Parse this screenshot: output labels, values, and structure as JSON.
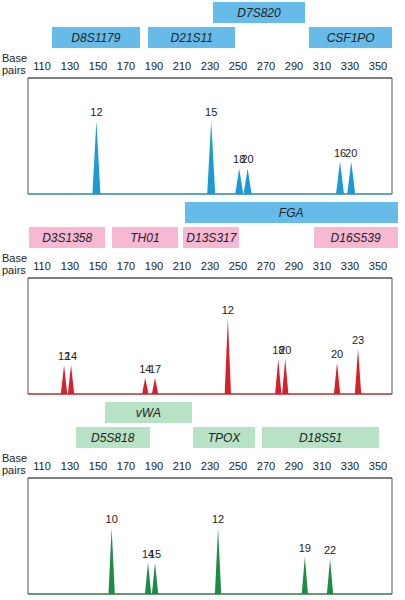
{
  "chart_data": [
    {
      "type": "bar",
      "x_label": "Base pairs",
      "xlim": [
        100,
        360
      ],
      "xticks": [
        110,
        130,
        150,
        170,
        190,
        210,
        230,
        250,
        270,
        290,
        310,
        330,
        350
      ],
      "ylim": [
        0,
        100
      ],
      "tick_labels": "x",
      "color": "#1c9ad6",
      "x": [
        149,
        231,
        251,
        257,
        323,
        331
      ],
      "values": [
        63,
        63,
        22,
        22,
        28,
        28
      ],
      "allele_labels": [
        12,
        15,
        18,
        20,
        16,
        20
      ],
      "loci": [
        {
          "name": "D8S1179",
          "range": [
            117,
            180
          ],
          "color": "#66bbe8"
        },
        {
          "name": "D21S11",
          "range": [
            186,
            248
          ],
          "color": "#66bbe8"
        },
        {
          "name": "D7S820",
          "range": [
            232,
            298
          ],
          "color": "#66bbe8"
        },
        {
          "name": "CSF1PO",
          "range": [
            301,
            360
          ],
          "color": "#66bbe8"
        }
      ]
    },
    {
      "type": "bar",
      "x_label": "Base pairs",
      "xlim": [
        100,
        360
      ],
      "xticks": [
        110,
        130,
        150,
        170,
        190,
        210,
        230,
        250,
        270,
        290,
        310,
        330,
        350
      ],
      "ylim": [
        0,
        100
      ],
      "tick_labels": "x",
      "color": "#d6202c",
      "x": [
        126,
        131,
        184,
        191,
        243,
        279,
        284,
        321,
        336
      ],
      "values": [
        25,
        25,
        14,
        14,
        65,
        30,
        30,
        27,
        39
      ],
      "allele_labels": [
        12,
        14,
        14,
        17,
        12,
        18,
        20,
        20,
        23
      ],
      "loci": [
        {
          "name": "D3S1358",
          "range": [
            101,
            155
          ],
          "color": "#f6b8d2"
        },
        {
          "name": "TH01",
          "range": [
            160,
            207
          ],
          "color": "#f6b8d2"
        },
        {
          "name": "D13S317",
          "range": [
            211,
            251
          ],
          "color": "#f6b8d2"
        },
        {
          "name": "FGA",
          "range": [
            212,
            364
          ],
          "color": "#66bbe8"
        },
        {
          "name": "D16S539",
          "range": [
            304,
            364
          ],
          "color": "#f6b8d2"
        }
      ]
    },
    {
      "type": "bar",
      "x_label": "Base pairs",
      "xlim": [
        100,
        360
      ],
      "xticks": [
        110,
        130,
        150,
        170,
        190,
        210,
        230,
        250,
        270,
        290,
        310,
        330,
        350
      ],
      "ylim": [
        0,
        100
      ],
      "tick_labels": "x",
      "color": "#1e8c46",
      "x": [
        160,
        186,
        191,
        236,
        298,
        316
      ],
      "values": [
        57,
        27,
        27,
        57,
        32,
        30
      ],
      "allele_labels": [
        10,
        14,
        15,
        12,
        19,
        22
      ],
      "loci": [
        {
          "name": "D5S818",
          "range": [
            134,
            187
          ],
          "color": "#b8e2c6"
        },
        {
          "name": "vWA",
          "range": [
            155,
            217
          ],
          "color": "#b8e2c6"
        },
        {
          "name": "TPOX",
          "range": [
            218,
            262
          ],
          "color": "#b8e2c6"
        },
        {
          "name": "D18S51",
          "range": [
            267,
            351
          ],
          "color": "#b8e2c6"
        }
      ]
    }
  ]
}
